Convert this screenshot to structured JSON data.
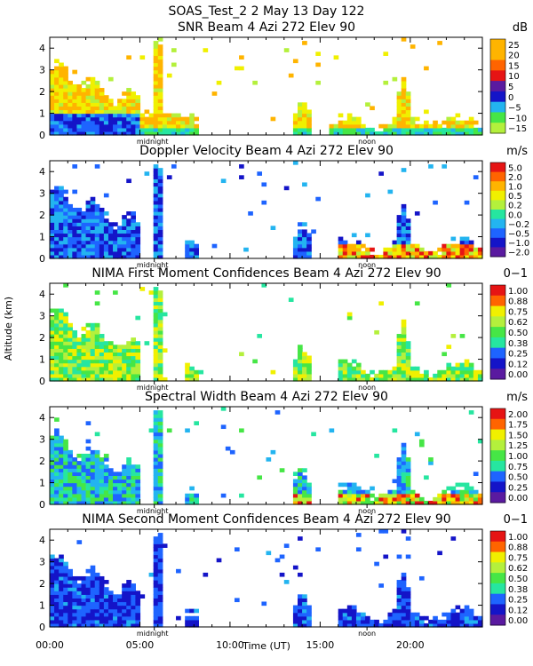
{
  "header": {
    "title": "SOAS_Test_2    2 May 13 Day 122"
  },
  "axes": {
    "ylabel": "Altitude (km)",
    "xlabel": "Time (UT)",
    "xticks": [
      "00:00",
      "05:00",
      "10:00",
      "15:00",
      "20:00"
    ],
    "yticks": [
      "0",
      "1",
      "2",
      "3",
      "4"
    ],
    "markers": {
      "midnight": "midnight",
      "noon": "noon"
    }
  },
  "colors": {
    "scale": [
      "#5a1aa0",
      "#1414c8",
      "#1e64ff",
      "#23b4f0",
      "#26e6a0",
      "#46e646",
      "#b4f03c",
      "#f0f000",
      "#ffb400",
      "#ff6400",
      "#e61414"
    ]
  },
  "chart_data": [
    {
      "type": "heatmap",
      "title": "SNR Beam 4 Azi 272 Elev 90",
      "unit": "dB",
      "xlabel": "Time (UT)",
      "ylabel": "Altitude (km)",
      "xlim": [
        0,
        24
      ],
      "ylim": [
        0,
        4.5
      ],
      "colorbar_ticks": [
        "25",
        "20",
        "15",
        "10",
        "5",
        "0",
        "−5",
        "−10",
        "−15"
      ]
    },
    {
      "type": "heatmap",
      "title": "Doppler Velocity Beam 4 Azi 272 Elev 90",
      "unit": "m/s",
      "xlabel": "Time (UT)",
      "ylabel": "Altitude (km)",
      "xlim": [
        0,
        24
      ],
      "ylim": [
        0,
        4.5
      ],
      "colorbar_ticks": [
        "5.0",
        "2.0",
        "1.0",
        "0.5",
        "0.2",
        "0.0",
        "−0.2",
        "−0.5",
        "−1.0",
        "−2.0"
      ]
    },
    {
      "type": "heatmap",
      "title": "NIMA First Moment Confidences Beam 4 Azi 272 Elev 90",
      "unit": "0−1",
      "xlabel": "Time (UT)",
      "ylabel": "Altitude (km)",
      "xlim": [
        0,
        24
      ],
      "ylim": [
        0,
        4.5
      ],
      "colorbar_ticks": [
        "1.00",
        "0.88",
        "0.75",
        "0.62",
        "0.50",
        "0.38",
        "0.25",
        "0.12",
        "0.00"
      ]
    },
    {
      "type": "heatmap",
      "title": "Spectral Width Beam 4 Azi 272 Elev 90",
      "unit": "m/s",
      "xlabel": "Time (UT)",
      "ylabel": "Altitude (km)",
      "xlim": [
        0,
        24
      ],
      "ylim": [
        0,
        4.5
      ],
      "colorbar_ticks": [
        "2.00",
        "1.75",
        "1.50",
        "1.25",
        "1.00",
        "0.75",
        "0.50",
        "0.25",
        "0.00"
      ]
    },
    {
      "type": "heatmap",
      "title": "NIMA Second Moment Confidences Beam 4 Azi 272 Elev 90",
      "unit": "0−1",
      "xlabel": "Time (UT)",
      "ylabel": "Altitude (km)",
      "xlim": [
        0,
        24
      ],
      "ylim": [
        0,
        4.5
      ],
      "colorbar_ticks": [
        "1.00",
        "0.88",
        "0.75",
        "0.62",
        "0.50",
        "0.38",
        "0.25",
        "0.12",
        "0.00"
      ]
    }
  ]
}
